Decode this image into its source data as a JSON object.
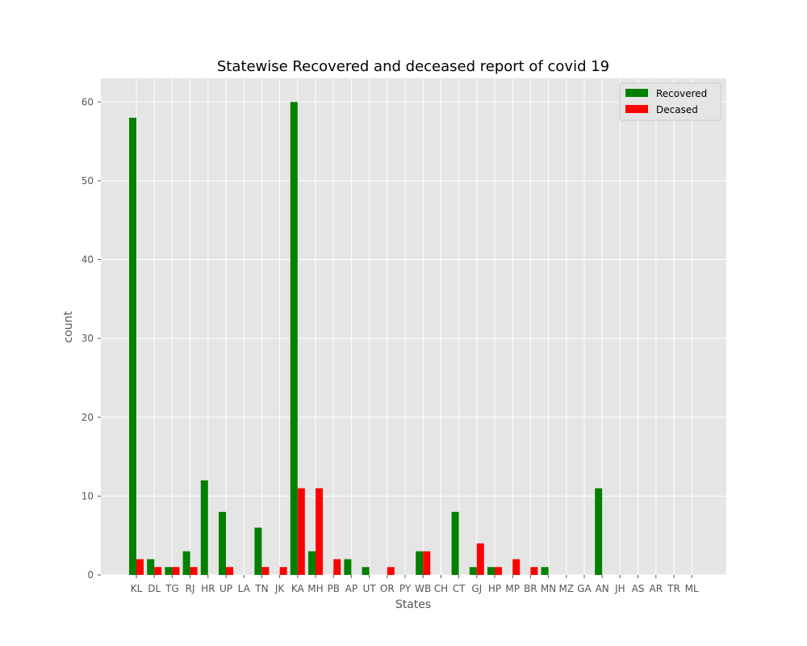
{
  "chart_data": {
    "type": "bar",
    "title": "Statewise Recovered and deceased report of covid 19",
    "xlabel": "States",
    "ylabel": "count",
    "ylim": [
      0,
      63
    ],
    "yticks": [
      "0",
      "10",
      "20",
      "30",
      "40",
      "50",
      "60"
    ],
    "grid": true,
    "legend_position": "top-right",
    "categories": [
      "KL",
      "DL",
      "TG",
      "RJ",
      "HR",
      "UP",
      "LA",
      "TN",
      "JK",
      "KA",
      "MH",
      "PB",
      "AP",
      "UT",
      "OR",
      "PY",
      "WB",
      "CH",
      "CT",
      "GJ",
      "HP",
      "MP",
      "BR",
      "MN",
      "MZ",
      "GA",
      "AN",
      "JH",
      "AS",
      "AR",
      "TR",
      "ML"
    ],
    "series": [
      {
        "name": "Recovered",
        "color": "#008000",
        "values": [
          58,
          2,
          1,
          3,
          12,
          8,
          0,
          6,
          0,
          60,
          3,
          0,
          2,
          1,
          0,
          0,
          3,
          0,
          8,
          1,
          1,
          0,
          0,
          1,
          0,
          0,
          11,
          0,
          0,
          0,
          0,
          0
        ]
      },
      {
        "name": "Decased",
        "color": "#ff0000",
        "values": [
          2,
          1,
          1,
          1,
          0,
          1,
          0,
          1,
          1,
          11,
          11,
          2,
          0,
          0,
          1,
          0,
          3,
          0,
          0,
          4,
          1,
          2,
          1,
          0,
          0,
          0,
          0,
          0,
          0,
          0,
          0,
          0
        ]
      }
    ]
  }
}
